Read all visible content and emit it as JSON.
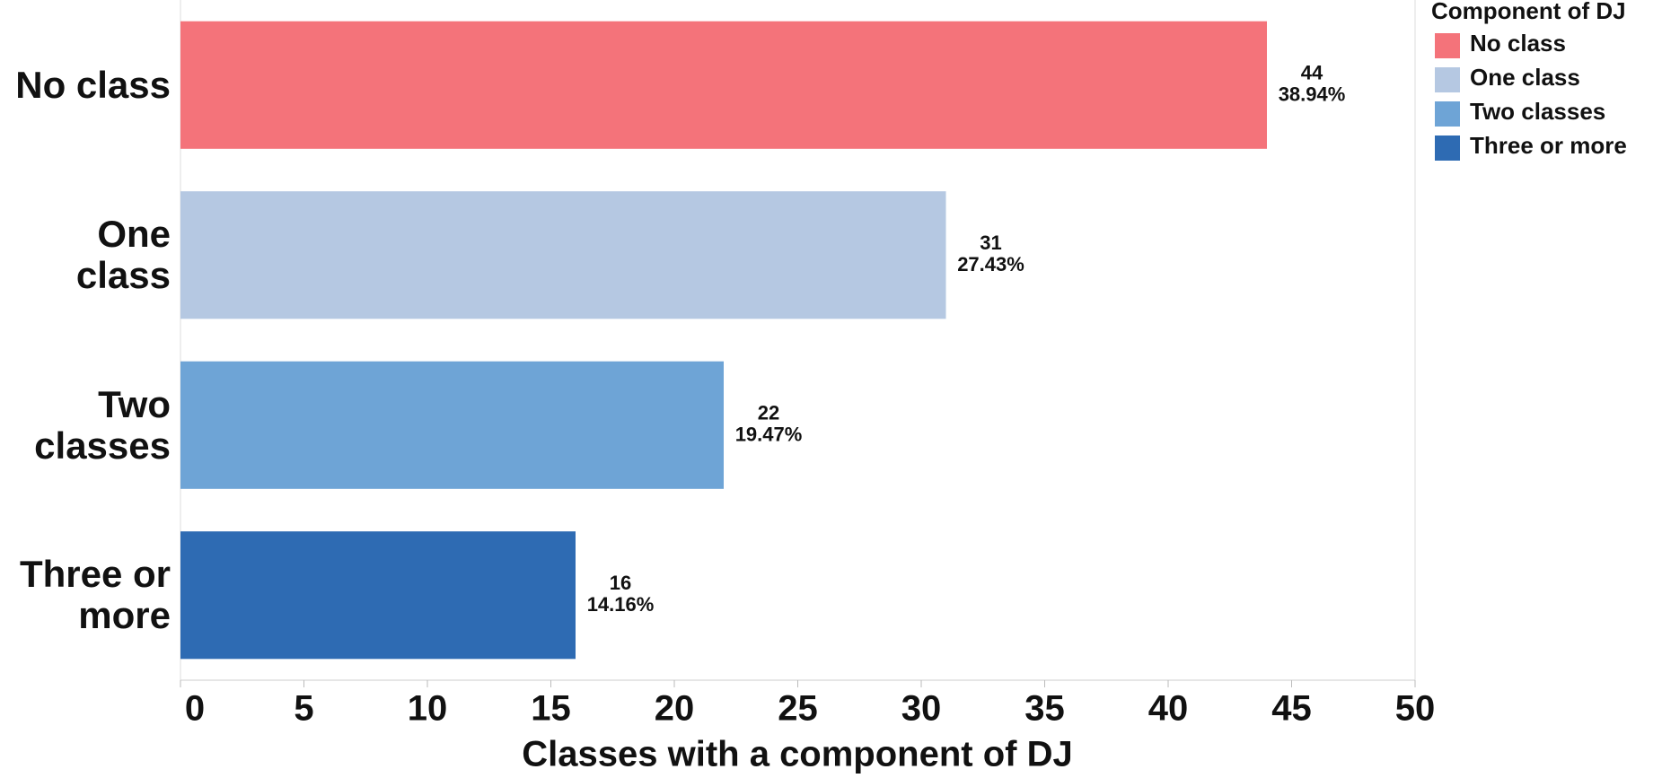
{
  "chart_data": {
    "type": "bar",
    "orientation": "horizontal",
    "xlabel": "Classes with a component of DJ",
    "categories": [
      "No class",
      "One class",
      "Two classes",
      "Three or more"
    ],
    "values": [
      44,
      31,
      22,
      16
    ],
    "percent_labels": [
      "38.94%",
      "27.43%",
      "19.47%",
      "14.16%"
    ],
    "colors": [
      "#f4737a",
      "#b5c8e2",
      "#6ea4d6",
      "#2e6bb3"
    ],
    "xlim": [
      0,
      50
    ],
    "xticks": [
      0,
      5,
      10,
      15,
      20,
      25,
      30,
      35,
      40,
      45,
      50
    ],
    "grid": false,
    "legend": {
      "title": "Component of DJ",
      "position": "right"
    }
  }
}
